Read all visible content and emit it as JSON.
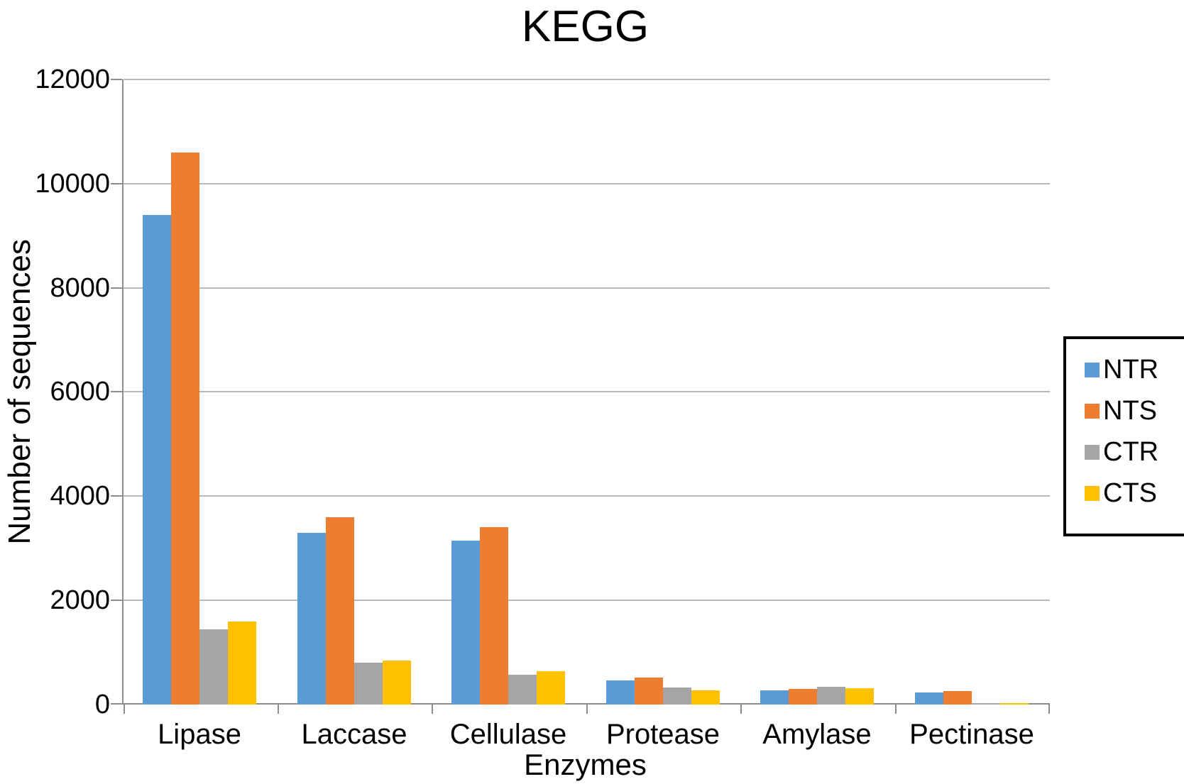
{
  "title": "KEGG",
  "chart_data": {
    "type": "bar",
    "title": "KEGG",
    "xlabel": "Enzymes",
    "ylabel": "Number of sequences",
    "categories": [
      "Lipase",
      "Laccase",
      "Cellulase",
      "Protease",
      "Amylase",
      "Pectinase"
    ],
    "series": [
      {
        "name": "NTR",
        "color": "#5B9BD5",
        "values": [
          9400,
          3300,
          3150,
          460,
          270,
          230
        ]
      },
      {
        "name": "NTS",
        "color": "#ED7D31",
        "values": [
          10600,
          3600,
          3400,
          520,
          300,
          260
        ]
      },
      {
        "name": "CTR",
        "color": "#A5A5A5",
        "values": [
          1450,
          800,
          570,
          330,
          340,
          30
        ]
      },
      {
        "name": "CTS",
        "color": "#FFC000",
        "values": [
          1600,
          840,
          640,
          270,
          310,
          25
        ]
      }
    ],
    "ylim": [
      0,
      12000
    ],
    "ytick_step": 2000,
    "yticks": [
      "0",
      "2000",
      "4000",
      "6000",
      "8000",
      "10000",
      "12000"
    ],
    "grid": "horizontal",
    "legend_position": "right"
  },
  "colors": {
    "axis": "#8C8C8C",
    "gridline": "#BABABA",
    "legend_border": "#000000",
    "background": "#FFFFFF"
  }
}
